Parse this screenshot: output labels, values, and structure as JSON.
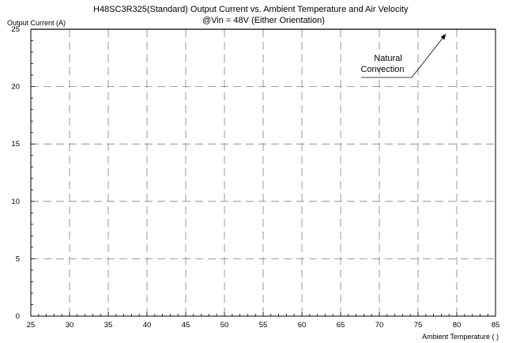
{
  "chart_data": {
    "type": "line",
    "title": "H48SC3R325(Standard)  Output Current vs. Ambient Temperature and Air Velocity",
    "subtitle": "@Vin = 48V (Either Orientation)",
    "xlabel": "Ambient Temperature (   )",
    "ylabel": "Output Current (A)",
    "xlim": [
      25,
      85
    ],
    "ylim": [
      0,
      25
    ],
    "xticks": [
      25,
      30,
      35,
      40,
      45,
      50,
      55,
      60,
      65,
      70,
      75,
      80,
      85
    ],
    "yticks": [
      0,
      5,
      10,
      15,
      20,
      25
    ],
    "grid": true,
    "grid_style": "dashed",
    "series": [
      {
        "name": "Natural Convection",
        "x": [
          25,
          85
        ],
        "y": [
          25,
          25
        ]
      }
    ],
    "annotations": [
      {
        "text": [
          "Natural",
          "Convection"
        ],
        "arrow_to": {
          "x": 79,
          "y": 25
        }
      }
    ]
  }
}
